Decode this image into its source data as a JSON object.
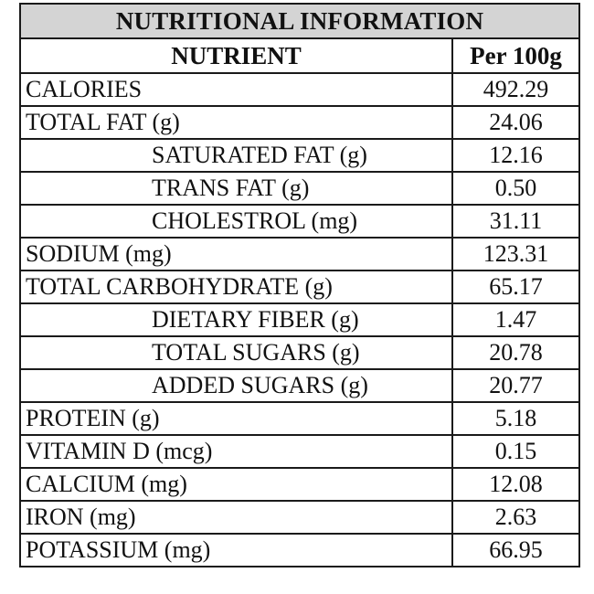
{
  "title": "NUTRITIONAL INFORMATION",
  "headers": {
    "nutrient": "NUTRIENT",
    "per": "Per 100g"
  },
  "rows": [
    {
      "name": "CALORIES",
      "value": "492.29",
      "indent": false
    },
    {
      "name": "TOTAL FAT (g)",
      "value": "24.06",
      "indent": false
    },
    {
      "name": "SATURATED FAT (g)",
      "value": "12.16",
      "indent": true
    },
    {
      "name": "TRANS FAT (g)",
      "value": "0.50",
      "indent": true
    },
    {
      "name": "CHOLESTROL (mg)",
      "value": "31.11",
      "indent": true
    },
    {
      "name": "SODIUM (mg)",
      "value": "123.31",
      "indent": false
    },
    {
      "name": "TOTAL CARBOHYDRATE (g)",
      "value": "65.17",
      "indent": false
    },
    {
      "name": "DIETARY FIBER (g)",
      "value": "1.47",
      "indent": true
    },
    {
      "name": "TOTAL SUGARS (g)",
      "value": "20.78",
      "indent": true
    },
    {
      "name": "ADDED SUGARS (g)",
      "value": "20.77",
      "indent": true
    },
    {
      "name": "PROTEIN (g)",
      "value": "5.18",
      "indent": false
    },
    {
      "name": "VITAMIN D (mcg)",
      "value": "0.15",
      "indent": false
    },
    {
      "name": "CALCIUM (mg)",
      "value": "12.08",
      "indent": false
    },
    {
      "name": "IRON (mg)",
      "value": "2.63",
      "indent": false
    },
    {
      "name": "POTASSIUM (mg)",
      "value": "66.95",
      "indent": false
    }
  ],
  "colors": {
    "title_background": "#d4d4d4",
    "border": "#1a1a1a"
  }
}
